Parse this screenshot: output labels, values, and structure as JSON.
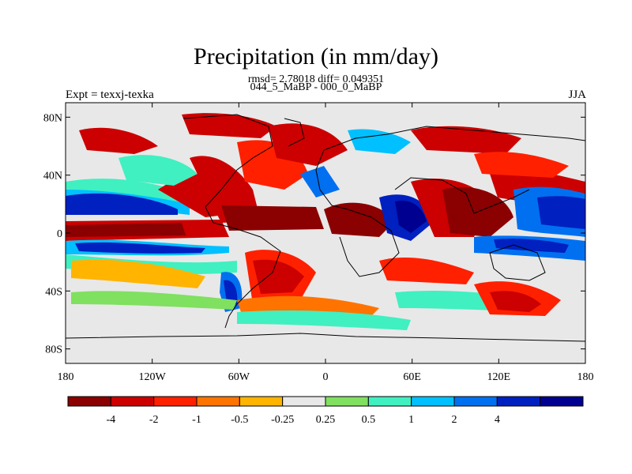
{
  "title": "Precipitation (in mm/day)",
  "stats_line": "rmsd= 2.78018 diff= 0.049351",
  "experiment_line": "044_5_MaBP - 000_0_MaBP",
  "left_label": "Expt = texxj-texka",
  "right_label": "JJA",
  "y_axis": {
    "ticks": [
      {
        "value": 80,
        "label": "80N"
      },
      {
        "value": 40,
        "label": "40N"
      },
      {
        "value": 0,
        "label": "0"
      },
      {
        "value": -40,
        "label": "40S"
      },
      {
        "value": -80,
        "label": "80S"
      }
    ]
  },
  "x_axis": {
    "ticks": [
      {
        "value": -180,
        "label": "180"
      },
      {
        "value": -120,
        "label": "120W"
      },
      {
        "value": -60,
        "label": "60W"
      },
      {
        "value": 0,
        "label": "0"
      },
      {
        "value": 60,
        "label": "60E"
      },
      {
        "value": 120,
        "label": "120E"
      },
      {
        "value": 180,
        "label": "180"
      }
    ]
  },
  "colorbar": {
    "colors": [
      "#8b0000",
      "#cc0000",
      "#ff2000",
      "#ff7400",
      "#ffb400",
      "#e8e8e8",
      "#80e060",
      "#40f0c0",
      "#00c0ff",
      "#0070f0",
      "#0020c0",
      "#000090"
    ],
    "labels": [
      "-4",
      "-2",
      "-1",
      "-0.5",
      "-0.25",
      "0.25",
      "0.5",
      "1",
      "2",
      "4"
    ]
  }
}
